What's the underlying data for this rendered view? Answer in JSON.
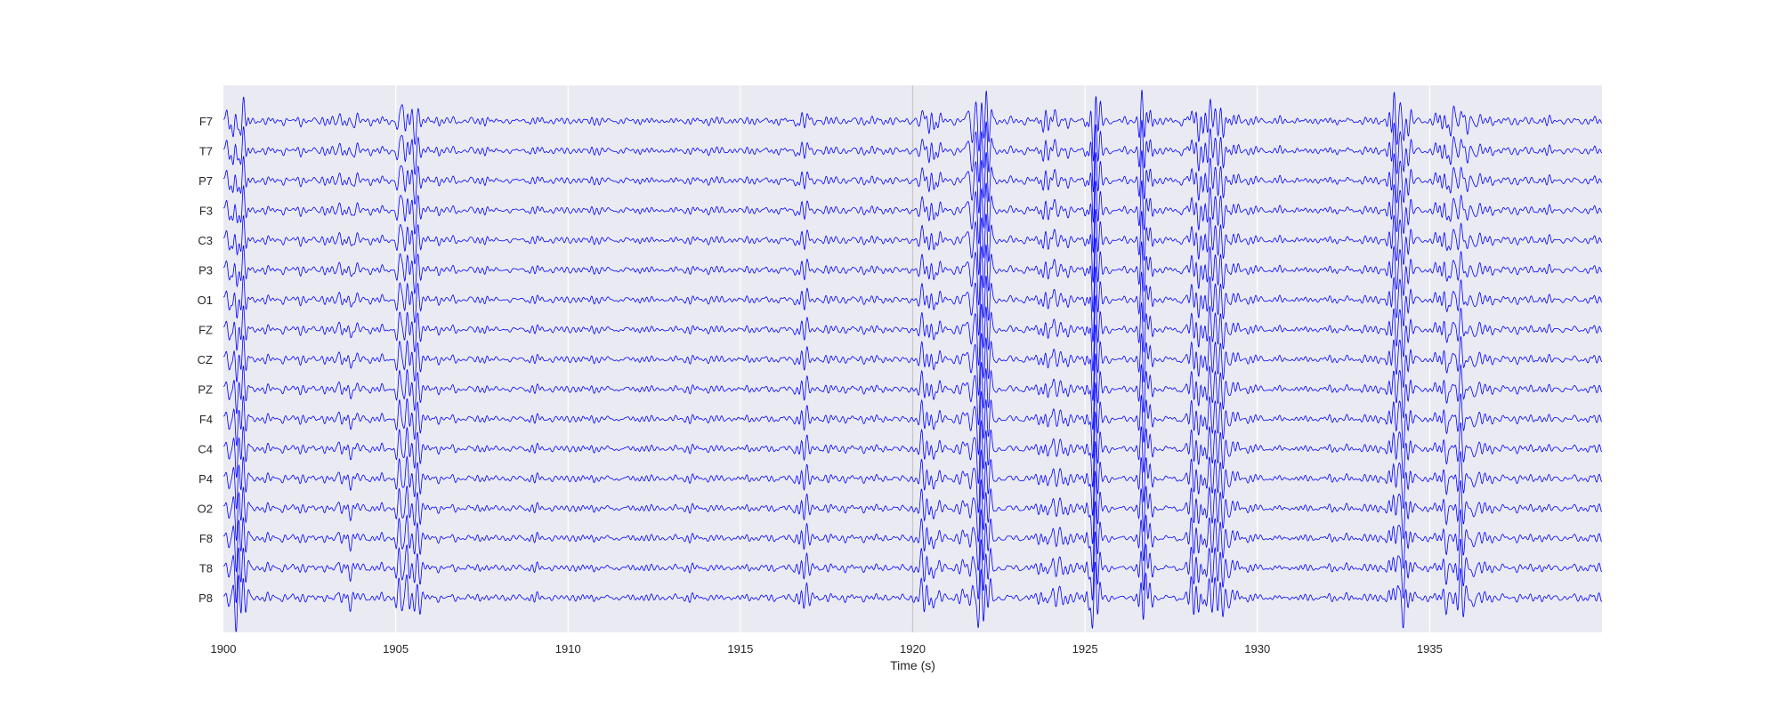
{
  "chart_data": {
    "type": "line",
    "title": "",
    "xlabel": "Time (s)",
    "ylabel": "",
    "xlim": [
      1900,
      1940
    ],
    "x_ticks": [
      1900,
      1905,
      1910,
      1915,
      1920,
      1925,
      1930,
      1935
    ],
    "x_tick_labels": [
      "1900",
      "1905",
      "1910",
      "1915",
      "1920",
      "1925",
      "1930",
      "1935"
    ],
    "grid": true,
    "legend": "none",
    "background_color": "#eaeaf2",
    "grid_color": "#ffffff",
    "line_color": "#0000ff",
    "marker_time": 1920,
    "marker_color": "#c8c8c8",
    "channels": [
      "F7",
      "T7",
      "P7",
      "F3",
      "C3",
      "P3",
      "O1",
      "FZ",
      "CZ",
      "PZ",
      "F4",
      "C4",
      "P4",
      "O2",
      "F8",
      "T8",
      "P8"
    ],
    "high_amplitude_bursts": [
      {
        "start": 1900.0,
        "end": 1900.8,
        "amp": 1.0
      },
      {
        "start": 1903.0,
        "end": 1904.2,
        "amp": 0.35
      },
      {
        "start": 1904.9,
        "end": 1905.8,
        "amp": 1.0
      },
      {
        "start": 1916.3,
        "end": 1917.5,
        "amp": 0.35
      },
      {
        "start": 1919.8,
        "end": 1921.0,
        "amp": 0.45
      },
      {
        "start": 1921.3,
        "end": 1922.5,
        "amp": 0.95
      },
      {
        "start": 1923.5,
        "end": 1924.8,
        "amp": 0.5
      },
      {
        "start": 1925.0,
        "end": 1925.5,
        "amp": 1.0
      },
      {
        "start": 1926.5,
        "end": 1927.0,
        "amp": 0.95
      },
      {
        "start": 1927.5,
        "end": 1929.8,
        "amp": 0.8
      },
      {
        "start": 1933.7,
        "end": 1934.6,
        "amp": 0.95
      },
      {
        "start": 1935.0,
        "end": 1936.7,
        "amp": 0.75
      }
    ]
  }
}
